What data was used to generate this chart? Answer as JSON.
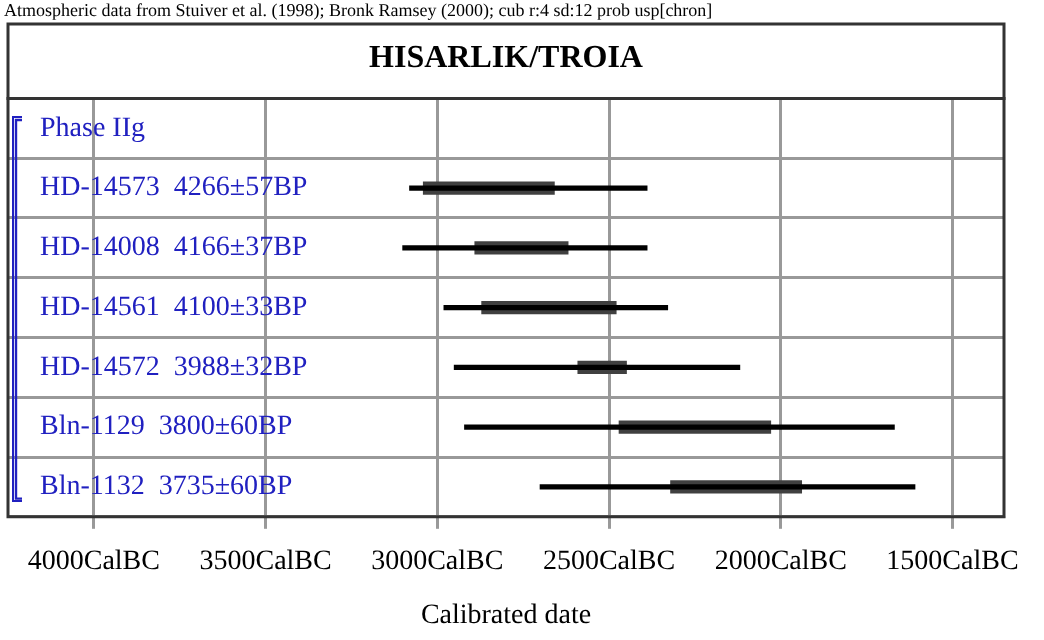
{
  "chart_data": {
    "type": "bar",
    "orientation": "horizontal",
    "title": "HISARLIK/TROIA",
    "xlabel": "Calibrated date",
    "annotations": [
      "Atmospheric data from Stuiver et al. (1998); Bronk Ramsey (2000); cub r:4 sd:12 prob usp[chron]",
      "Phase IIg"
    ],
    "categories": [
      "HD-14573  4266±57BP",
      "HD-14008  4166±37BP",
      "HD-14561  4100±33BP",
      "HD-14572  3988±32BP",
      "Bln-1129  3800±60BP",
      "Bln-1132  3735±60BP"
    ],
    "series": [
      {
        "color": "#000000",
        "base": [
          -3080,
          -3100,
          -2980,
          -2950,
          -2920,
          -2700
        ],
        "values": [
          690,
          710,
          650,
          830,
          1250,
          1090
        ]
      },
      {
        "color": "#404040",
        "base": [
          -3040,
          -2890,
          -2870,
          -2590,
          -2470,
          -2320
        ],
        "values": [
          380,
          270,
          390,
          140,
          440,
          380
        ]
      }
    ],
    "xlim": [
      -4250,
      -1350
    ],
    "xticks": [
      {
        "value": -4000,
        "label": "4000CalBC"
      },
      {
        "value": -3500,
        "label": "3500CalBC"
      },
      {
        "value": -3000,
        "label": "3000CalBC"
      },
      {
        "value": -2500,
        "label": "2500CalBC"
      },
      {
        "value": -2000,
        "label": "2000CalBC"
      },
      {
        "value": -1500,
        "label": "1500CalBC"
      }
    ],
    "grid": true
  }
}
